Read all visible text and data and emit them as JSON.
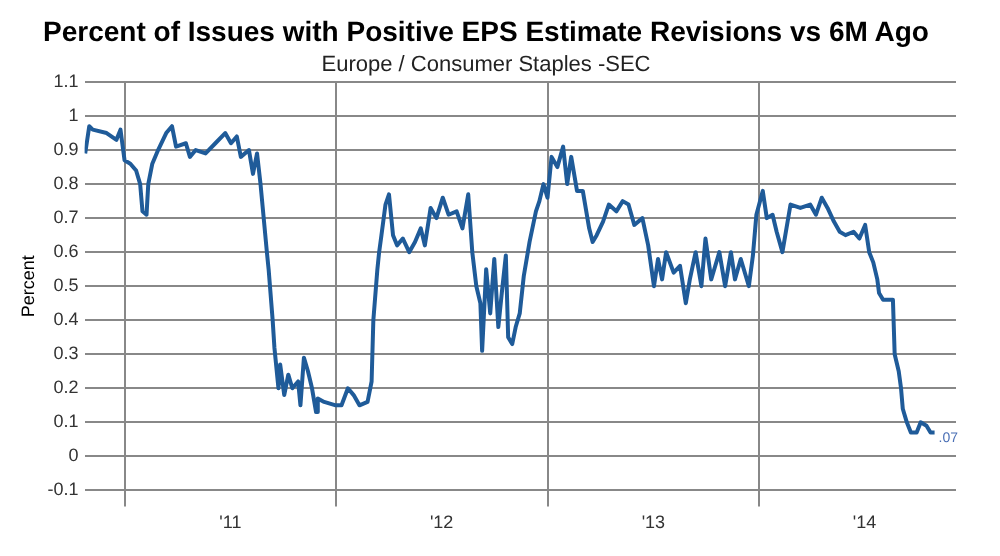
{
  "chart_data": {
    "type": "line",
    "title": "Percent of Issues with Positive EPS Estimate Revisions vs 6M Ago",
    "subtitle": "Europe / Consumer Staples -SEC",
    "ylabel": "Percent",
    "x": [
      "2010-10-25",
      "2010-11-01",
      "2010-11-07",
      "2010-12-01",
      "2010-12-18",
      "2010-12-25",
      "2011-01-01",
      "2011-01-11",
      "2011-01-21",
      "2011-01-28",
      "2011-02-01",
      "2011-02-08",
      "2011-02-11",
      "2011-02-18",
      "2011-02-28",
      "2011-03-14",
      "2011-03-24",
      "2011-03-31",
      "2011-04-17",
      "2011-04-24",
      "2011-05-04",
      "2011-05-21",
      "2011-06-07",
      "2011-06-24",
      "2011-07-04",
      "2011-07-14",
      "2011-07-21",
      "2011-08-04",
      "2011-08-11",
      "2011-08-18",
      "2011-08-24",
      "2011-09-04",
      "2011-09-07",
      "2011-09-14",
      "2011-09-17",
      "2011-09-24",
      "2011-09-27",
      "2011-10-04",
      "2011-10-11",
      "2011-10-18",
      "2011-10-28",
      "2011-11-01",
      "2011-11-07",
      "2011-11-14",
      "2011-11-21",
      "2011-11-28",
      "2011-12-01",
      "2011-12-12",
      "2012-01-01",
      "2012-01-11",
      "2012-01-22",
      "2012-02-01",
      "2012-02-11",
      "2012-02-25",
      "2012-03-03",
      "2012-03-06",
      "2012-03-13",
      "2012-03-16",
      "2012-03-20",
      "2012-03-27",
      "2012-04-02",
      "2012-04-09",
      "2012-04-16",
      "2012-04-26",
      "2012-05-07",
      "2012-05-17",
      "2012-05-27",
      "2012-06-03",
      "2012-06-13",
      "2012-06-23",
      "2012-07-04",
      "2012-07-14",
      "2012-07-28",
      "2012-08-07",
      "2012-08-17",
      "2012-08-24",
      "2012-08-31",
      "2012-09-07",
      "2012-09-10",
      "2012-09-17",
      "2012-09-24",
      "2012-10-01",
      "2012-10-08",
      "2012-10-14",
      "2012-10-21",
      "2012-10-25",
      "2012-11-01",
      "2012-11-07",
      "2012-11-14",
      "2012-11-21",
      "2012-12-01",
      "2012-12-12",
      "2012-12-18",
      "2012-12-25",
      "2013-01-01",
      "2013-01-08",
      "2013-01-18",
      "2013-01-28",
      "2013-02-04",
      "2013-02-11",
      "2013-02-21",
      "2013-03-03",
      "2013-03-14",
      "2013-03-20",
      "2013-03-27",
      "2013-04-07",
      "2013-04-17",
      "2013-04-30",
      "2013-05-11",
      "2013-05-21",
      "2013-05-31",
      "2013-06-14",
      "2013-06-24",
      "2013-07-04",
      "2013-07-11",
      "2013-07-18",
      "2013-07-25",
      "2013-08-07",
      "2013-08-18",
      "2013-08-28",
      "2013-09-04",
      "2013-09-14",
      "2013-09-24",
      "2013-10-01",
      "2013-10-11",
      "2013-10-18",
      "2013-10-25",
      "2013-11-04",
      "2013-11-14",
      "2013-11-21",
      "2013-12-01",
      "2013-12-15",
      "2013-12-22",
      "2013-12-28",
      "2014-01-08",
      "2014-01-15",
      "2014-01-25",
      "2014-02-01",
      "2014-02-11",
      "2014-02-25",
      "2014-03-14",
      "2014-03-31",
      "2014-04-10",
      "2014-04-20",
      "2014-04-30",
      "2014-05-11",
      "2014-05-21",
      "2014-05-31",
      "2014-06-14",
      "2014-06-24",
      "2014-07-04",
      "2014-07-11",
      "2014-07-18",
      "2014-07-25",
      "2014-07-28",
      "2014-08-04",
      "2014-08-21",
      "2014-08-24",
      "2014-08-31",
      "2014-09-04",
      "2014-09-07",
      "2014-09-14",
      "2014-09-21",
      "2014-10-01",
      "2014-10-08",
      "2014-10-18",
      "2014-10-25",
      "2014-11-01"
    ],
    "series": [
      {
        "color": "#1f5b99",
        "values": [
          0.89,
          0.97,
          0.96,
          0.95,
          0.93,
          0.96,
          0.87,
          0.86,
          0.84,
          0.8,
          0.72,
          0.71,
          0.8,
          0.86,
          0.9,
          0.95,
          0.97,
          0.91,
          0.92,
          0.88,
          0.9,
          0.89,
          0.92,
          0.95,
          0.92,
          0.94,
          0.88,
          0.9,
          0.83,
          0.89,
          0.8,
          0.6,
          0.55,
          0.4,
          0.32,
          0.2,
          0.27,
          0.18,
          0.24,
          0.2,
          0.22,
          0.15,
          0.29,
          0.25,
          0.2,
          0.13,
          0.17,
          0.16,
          0.15,
          0.15,
          0.2,
          0.18,
          0.15,
          0.16,
          0.22,
          0.4,
          0.55,
          0.6,
          0.65,
          0.74,
          0.77,
          0.65,
          0.62,
          0.64,
          0.6,
          0.63,
          0.67,
          0.62,
          0.73,
          0.7,
          0.76,
          0.71,
          0.72,
          0.67,
          0.77,
          0.6,
          0.5,
          0.45,
          0.31,
          0.55,
          0.42,
          0.58,
          0.38,
          0.48,
          0.59,
          0.35,
          0.33,
          0.38,
          0.42,
          0.53,
          0.63,
          0.72,
          0.75,
          0.8,
          0.76,
          0.88,
          0.85,
          0.91,
          0.8,
          0.88,
          0.78,
          0.78,
          0.67,
          0.63,
          0.65,
          0.69,
          0.74,
          0.72,
          0.75,
          0.74,
          0.68,
          0.7,
          0.62,
          0.5,
          0.58,
          0.52,
          0.6,
          0.54,
          0.56,
          0.45,
          0.52,
          0.6,
          0.5,
          0.64,
          0.52,
          0.56,
          0.6,
          0.5,
          0.6,
          0.52,
          0.58,
          0.5,
          0.59,
          0.71,
          0.78,
          0.7,
          0.71,
          0.66,
          0.6,
          0.74,
          0.73,
          0.74,
          0.71,
          0.76,
          0.73,
          0.69,
          0.66,
          0.65,
          0.66,
          0.64,
          0.68,
          0.6,
          0.57,
          0.52,
          0.48,
          0.46,
          0.46,
          0.3,
          0.25,
          0.2,
          0.14,
          0.1,
          0.07,
          0.07,
          0.1,
          0.09,
          0.07,
          0.07
        ]
      }
    ],
    "xlim": [
      "2010-10-24",
      "2014-12-08"
    ],
    "xticks": [
      {
        "value": "2011-01-01",
        "label": null
      },
      {
        "value": "2011-07-03",
        "label": "'11"
      },
      {
        "value": "2012-01-01",
        "label": null
      },
      {
        "value": "2012-07-02",
        "label": "'12"
      },
      {
        "value": "2013-01-01",
        "label": null
      },
      {
        "value": "2013-07-03",
        "label": "'13"
      },
      {
        "value": "2014-01-01",
        "label": null
      },
      {
        "value": "2014-07-03",
        "label": "'14"
      }
    ],
    "ylim": [
      -0.1,
      1.1
    ],
    "yticks": [
      -0.1,
      0,
      0.1,
      0.2,
      0.3,
      0.4,
      0.5,
      0.6,
      0.7,
      0.8,
      0.9,
      1,
      1.1
    ],
    "grid": true,
    "line_style": "solid",
    "annotations": [
      {
        "text": ".07",
        "x": "2014-11-01",
        "y": 0.07
      }
    ]
  }
}
